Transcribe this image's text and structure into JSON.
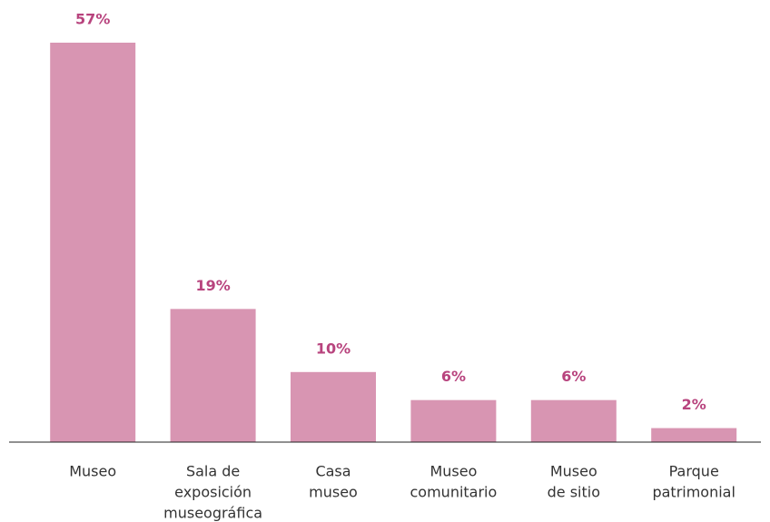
{
  "chart_data": {
    "type": "bar",
    "categories": [
      [
        "Museo"
      ],
      [
        "Sala de",
        "exposición",
        "museográfica"
      ],
      [
        "Casa",
        "museo"
      ],
      [
        "Museo",
        "comunitario"
      ],
      [
        "Museo",
        "de sitio"
      ],
      [
        "Parque",
        "patrimonial"
      ]
    ],
    "values": [
      57,
      19,
      10,
      6,
      6,
      2
    ],
    "value_labels": [
      "57%",
      "19%",
      "10%",
      "6%",
      "6%",
      "2%"
    ],
    "color": "#d895b2"
  }
}
